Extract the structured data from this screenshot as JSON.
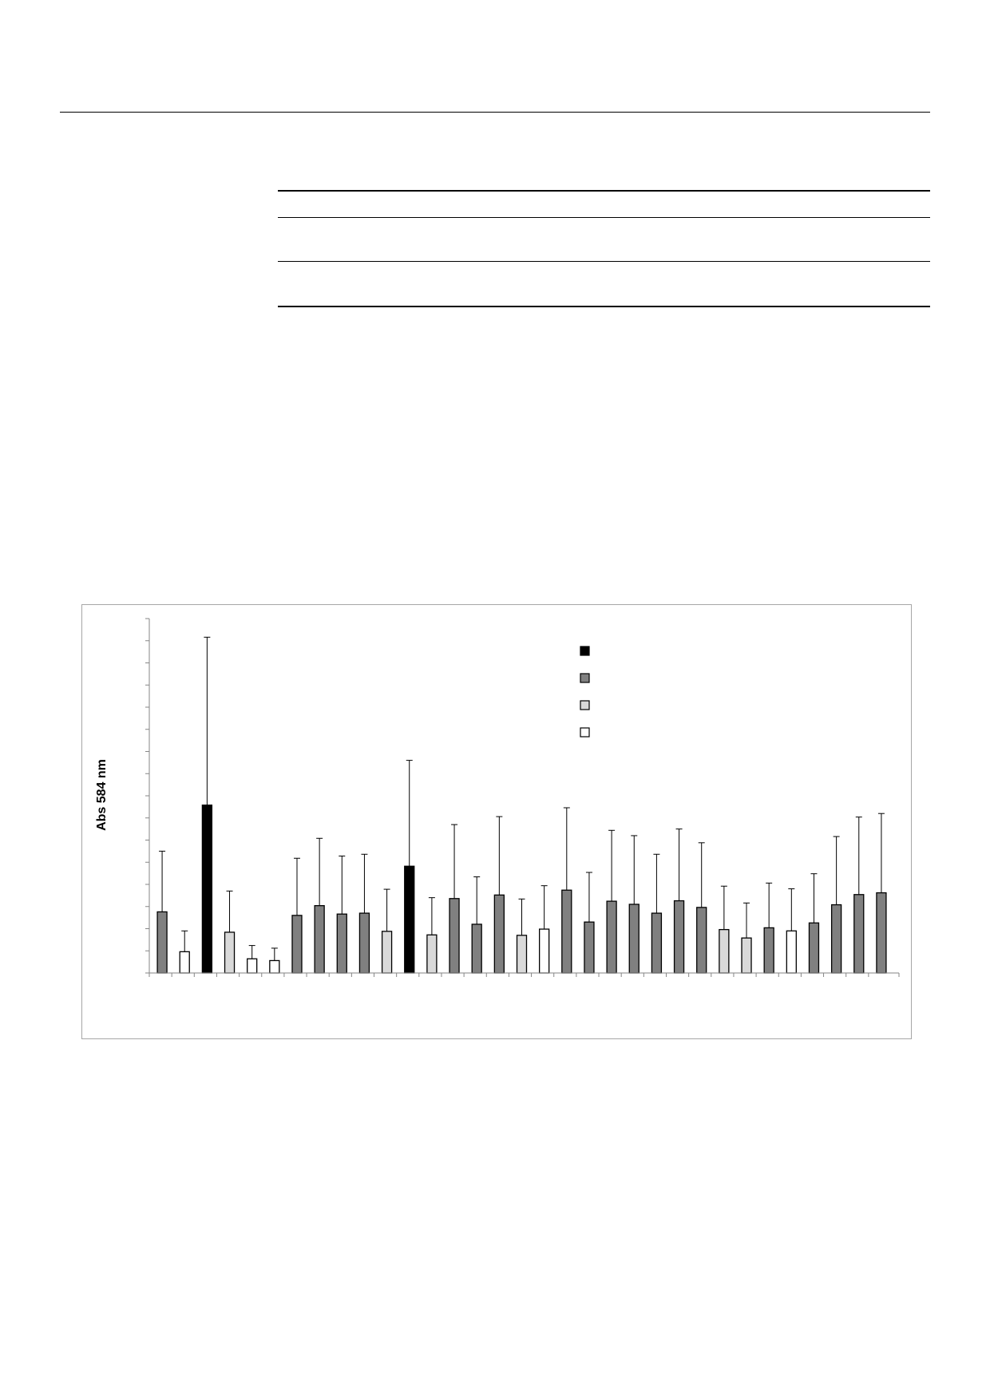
{
  "chart_data": {
    "type": "bar",
    "ylabel": "Abs 584 nm",
    "xlabel": "",
    "ylim": [
      0,
      16
    ],
    "yticks": [
      0,
      1,
      2,
      3,
      4,
      5,
      6,
      7,
      8,
      9,
      10,
      11,
      12,
      13,
      14,
      15,
      16
    ],
    "legend_placement": "top-right",
    "legend": [
      {
        "color": "#000000",
        "label": ""
      },
      {
        "color": "#808080",
        "label": ""
      },
      {
        "color": "#d9d9d9",
        "label": ""
      },
      {
        "color": "#ffffff",
        "label": ""
      }
    ],
    "bars": [
      {
        "value": 2.76,
        "error": 2.74,
        "color": "#808080"
      },
      {
        "value": 0.96,
        "error": 0.94,
        "color": "#ffffff"
      },
      {
        "value": 7.58,
        "error": 7.58,
        "color": "#000000"
      },
      {
        "value": 1.84,
        "error": 1.86,
        "color": "#d9d9d9"
      },
      {
        "value": 0.64,
        "error": 0.6,
        "color": "#ffffff"
      },
      {
        "value": 0.56,
        "error": 0.56,
        "color": "#ffffff"
      },
      {
        "value": 2.6,
        "error": 2.58,
        "color": "#808080"
      },
      {
        "value": 3.04,
        "error": 3.04,
        "color": "#808080"
      },
      {
        "value": 2.66,
        "error": 2.62,
        "color": "#808080"
      },
      {
        "value": 2.7,
        "error": 2.66,
        "color": "#808080"
      },
      {
        "value": 1.88,
        "error": 1.9,
        "color": "#d9d9d9"
      },
      {
        "value": 4.82,
        "error": 4.78,
        "color": "#000000"
      },
      {
        "value": 1.72,
        "error": 1.68,
        "color": "#d9d9d9"
      },
      {
        "value": 3.36,
        "error": 3.34,
        "color": "#808080"
      },
      {
        "value": 2.2,
        "error": 2.14,
        "color": "#808080"
      },
      {
        "value": 3.52,
        "error": 3.54,
        "color": "#808080"
      },
      {
        "value": 1.7,
        "error": 1.64,
        "color": "#d9d9d9"
      },
      {
        "value": 1.98,
        "error": 1.96,
        "color": "#ffffff"
      },
      {
        "value": 3.74,
        "error": 3.72,
        "color": "#808080"
      },
      {
        "value": 2.3,
        "error": 2.24,
        "color": "#808080"
      },
      {
        "value": 3.24,
        "error": 3.2,
        "color": "#808080"
      },
      {
        "value": 3.1,
        "error": 3.1,
        "color": "#808080"
      },
      {
        "value": 2.7,
        "error": 2.66,
        "color": "#808080"
      },
      {
        "value": 3.26,
        "error": 3.24,
        "color": "#808080"
      },
      {
        "value": 2.96,
        "error": 2.92,
        "color": "#808080"
      },
      {
        "value": 1.96,
        "error": 1.96,
        "color": "#d9d9d9"
      },
      {
        "value": 1.58,
        "error": 1.58,
        "color": "#d9d9d9"
      },
      {
        "value": 2.04,
        "error": 2.02,
        "color": "#808080"
      },
      {
        "value": 1.9,
        "error": 1.9,
        "color": "#ffffff"
      },
      {
        "value": 2.26,
        "error": 2.22,
        "color": "#808080"
      },
      {
        "value": 3.08,
        "error": 3.08,
        "color": "#808080"
      },
      {
        "value": 3.54,
        "error": 3.5,
        "color": "#808080"
      },
      {
        "value": 3.62,
        "error": 3.58,
        "color": "#808080"
      }
    ]
  }
}
